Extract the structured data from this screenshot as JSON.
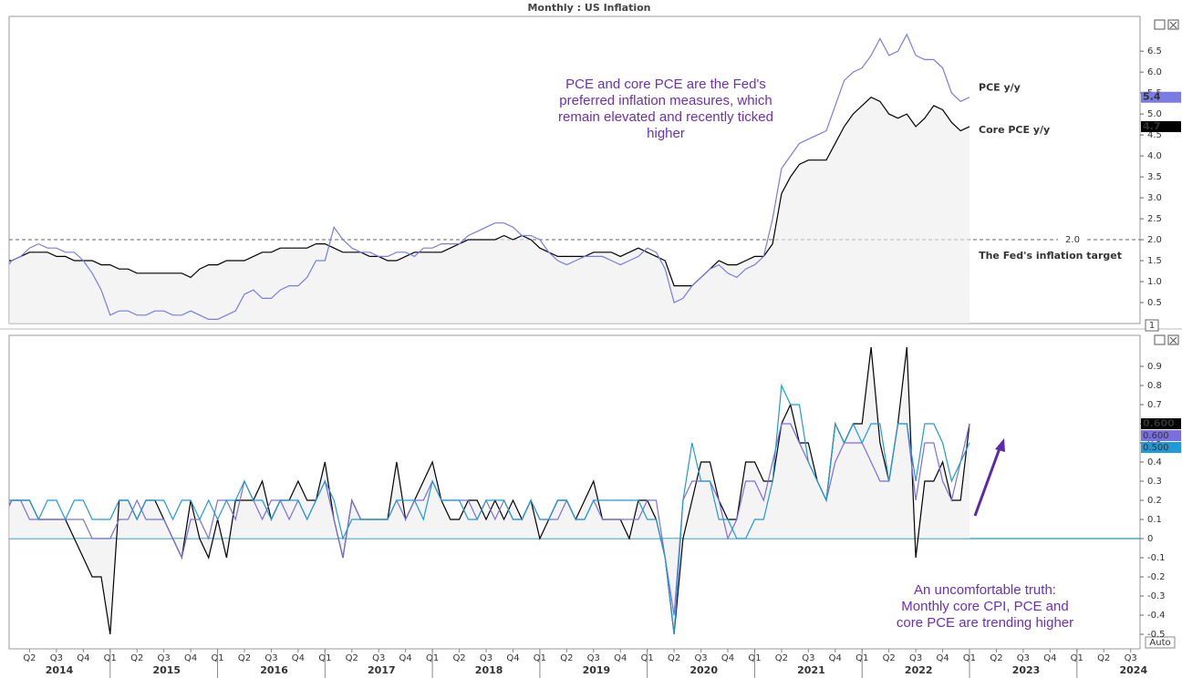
{
  "chart_data": [
    {
      "type": "line",
      "title": "Monthly : US Inflation",
      "ylim": [
        0,
        7.33
      ],
      "yticks": [
        0.5,
        {
          "value": 1,
          "label": "1.0"
        },
        1.5,
        {
          "value": 2,
          "label": "2.0"
        },
        2.5,
        {
          "value": 3,
          "label": "3.0"
        },
        3.5,
        {
          "value": 4,
          "label": "4.0"
        },
        4.5,
        {
          "value": 5,
          "label": "5.0"
        },
        5.5,
        {
          "value": 6,
          "label": "6.0"
        },
        6.5
      ],
      "target": {
        "value": 2,
        "label": "2.0",
        "text": "The Fed's inflation target"
      },
      "annotation": [
        "PCE and core PCE are the Fed's",
        "preferred inflation measures, which",
        "remain elevated and recently ticked",
        "higher"
      ],
      "panel_label": "1",
      "series": [
        {
          "name": "PCE y/y",
          "color": "#7b7be6",
          "values": [
            1.2,
            1.5,
            1.6,
            1.8,
            1.9,
            1.8,
            1.8,
            1.7,
            1.7,
            1.5,
            1.2,
            0.8,
            0.2,
            0.3,
            0.3,
            0.2,
            0.2,
            0.3,
            0.3,
            0.2,
            0.2,
            0.3,
            0.2,
            0.1,
            0.1,
            0.2,
            0.3,
            0.7,
            0.8,
            0.6,
            0.6,
            0.8,
            0.9,
            0.9,
            1.1,
            1.5,
            1.5,
            2.3,
            2.0,
            1.8,
            1.7,
            1.7,
            1.6,
            1.6,
            1.7,
            1.7,
            1.6,
            1.8,
            1.8,
            1.9,
            1.9,
            1.9,
            2.1,
            2.2,
            2.3,
            2.4,
            2.4,
            2.3,
            2.1,
            2.1,
            2.0,
            1.7,
            1.5,
            1.4,
            1.5,
            1.6,
            1.6,
            1.6,
            1.5,
            1.4,
            1.5,
            1.6,
            1.8,
            1.7,
            1.3,
            0.5,
            0.6,
            0.9,
            1.1,
            1.3,
            1.4,
            1.2,
            1.1,
            1.3,
            1.4,
            1.6,
            2.5,
            3.7,
            4.0,
            4.3,
            4.4,
            4.5,
            4.6,
            5.2,
            5.8,
            6.0,
            6.1,
            6.4,
            6.8,
            6.4,
            6.5,
            6.9,
            6.4,
            6.3,
            6.3,
            6.1,
            5.5,
            5.3,
            5.4
          ]
        },
        {
          "name": "Core PCE y/y",
          "color": "#000000",
          "values": [
            1.5,
            1.5,
            1.6,
            1.7,
            1.7,
            1.7,
            1.6,
            1.6,
            1.5,
            1.5,
            1.5,
            1.4,
            1.4,
            1.3,
            1.3,
            1.2,
            1.2,
            1.2,
            1.2,
            1.2,
            1.2,
            1.1,
            1.3,
            1.4,
            1.4,
            1.5,
            1.5,
            1.5,
            1.6,
            1.7,
            1.7,
            1.8,
            1.8,
            1.8,
            1.8,
            1.9,
            1.9,
            1.8,
            1.7,
            1.7,
            1.7,
            1.6,
            1.6,
            1.5,
            1.5,
            1.6,
            1.7,
            1.7,
            1.7,
            1.7,
            1.8,
            1.9,
            2.0,
            2.0,
            2.0,
            2.0,
            2.1,
            2.0,
            2.1,
            2.0,
            1.8,
            1.7,
            1.6,
            1.6,
            1.6,
            1.6,
            1.7,
            1.7,
            1.7,
            1.6,
            1.7,
            1.8,
            1.7,
            1.6,
            1.5,
            0.9,
            0.9,
            0.9,
            1.1,
            1.3,
            1.5,
            1.4,
            1.4,
            1.5,
            1.6,
            1.6,
            1.9,
            3.1,
            3.5,
            3.8,
            3.9,
            3.9,
            3.9,
            4.3,
            4.7,
            5.0,
            5.2,
            5.4,
            5.3,
            5.0,
            4.9,
            5.0,
            4.7,
            4.9,
            5.2,
            5.1,
            4.8,
            4.6,
            4.7
          ]
        }
      ]
    },
    {
      "type": "line",
      "ylim": [
        -0.576,
        1.062
      ],
      "yticks": [
        -0.5,
        -0.4,
        -0.3,
        -0.2,
        -0.1,
        0,
        0.1,
        0.2,
        0.3,
        0.4,
        0.5,
        0.6,
        0.7,
        0.8,
        0.9
      ],
      "zero_line": true,
      "annotation": [
        "An uncomfortable truth:",
        "Monthly core CPI, PCE and",
        "core PCE are trending higher"
      ],
      "auto_button": "Auto",
      "x_axis": {
        "quarters": [
          "Q2",
          "Q3",
          "Q4",
          "Q1",
          "Q2",
          "Q3",
          "Q4",
          "Q1",
          "Q2",
          "Q3",
          "Q4",
          "Q1",
          "Q2",
          "Q3",
          "Q4",
          "Q1",
          "Q2",
          "Q3",
          "Q4",
          "Q1",
          "Q2",
          "Q3",
          "Q4",
          "Q1",
          "Q2",
          "Q3",
          "Q4",
          "Q1",
          "Q2",
          "Q3",
          "Q4",
          "Q1",
          "Q2",
          "Q3",
          "Q4",
          "Q1",
          "Q2",
          "Q3",
          "Q4",
          "Q1",
          "Q2",
          "Q3"
        ],
        "years": [
          "2014",
          "2015",
          "2016",
          "2017",
          "2018",
          "2019",
          "2020",
          "2021",
          "2022",
          "2023",
          "2024"
        ]
      },
      "series": [
        {
          "color": "#000000",
          "end_label": "0.600",
          "values": [
            0.1,
            0.2,
            0.2,
            0.2,
            0.1,
            0.1,
            0.1,
            0.1,
            0.0,
            -0.1,
            -0.2,
            -0.2,
            -0.5,
            0.2,
            0.2,
            0.1,
            0.2,
            0.2,
            0.1,
            0.0,
            -0.1,
            0.2,
            0.0,
            -0.1,
            0.1,
            -0.1,
            0.2,
            0.2,
            0.2,
            0.3,
            0.1,
            0.2,
            0.2,
            0.3,
            0.2,
            0.2,
            0.4,
            0.1,
            -0.1,
            0.2,
            0.1,
            0.1,
            0.1,
            0.1,
            0.4,
            0.1,
            0.2,
            0.3,
            0.4,
            0.2,
            0.1,
            0.1,
            0.2,
            0.2,
            0.1,
            0.2,
            0.1,
            0.2,
            0.1,
            0.2,
            0.0,
            0.1,
            0.2,
            0.2,
            0.1,
            0.2,
            0.3,
            0.1,
            0.1,
            0.1,
            0.0,
            0.2,
            0.2,
            0.1,
            -0.1,
            -0.5,
            0.0,
            0.2,
            0.4,
            0.4,
            0.2,
            0.1,
            0.1,
            0.4,
            0.4,
            0.3,
            0.3,
            0.6,
            0.7,
            0.5,
            0.5,
            0.3,
            0.2,
            0.6,
            0.5,
            0.6,
            0.6,
            1.0,
            0.5,
            0.3,
            0.6,
            1.0,
            -0.1,
            0.3,
            0.3,
            0.4,
            0.2,
            0.2,
            0.6
          ]
        },
        {
          "color": "#7b6ee0",
          "end_label": "0.600",
          "values": [
            0.1,
            0.2,
            0.2,
            0.1,
            0.1,
            0.1,
            0.1,
            0.1,
            0.1,
            0.1,
            0.0,
            0.0,
            0.0,
            0.1,
            0.1,
            0.2,
            0.1,
            0.1,
            0.1,
            0.0,
            -0.1,
            0.1,
            0.1,
            0.0,
            0.2,
            0.2,
            0.1,
            0.3,
            0.2,
            0.1,
            0.2,
            0.2,
            0.1,
            0.2,
            0.1,
            0.2,
            0.3,
            0.1,
            -0.1,
            0.2,
            0.1,
            0.1,
            0.1,
            0.1,
            0.2,
            0.1,
            0.2,
            0.2,
            0.3,
            0.2,
            0.2,
            0.2,
            0.2,
            0.1,
            0.2,
            0.1,
            0.2,
            0.1,
            0.1,
            0.2,
            0.1,
            0.1,
            0.1,
            0.2,
            0.1,
            0.1,
            0.2,
            0.1,
            0.1,
            0.1,
            0.1,
            0.1,
            0.2,
            0.2,
            -0.1,
            -0.4,
            0.2,
            0.3,
            0.3,
            0.3,
            0.2,
            0.0,
            0.1,
            0.3,
            0.3,
            0.2,
            0.4,
            0.6,
            0.6,
            0.5,
            0.4,
            0.3,
            0.2,
            0.4,
            0.5,
            0.5,
            0.5,
            0.4,
            0.3,
            0.3,
            0.6,
            0.6,
            0.2,
            0.5,
            0.5,
            0.3,
            0.2,
            0.4,
            0.6
          ]
        },
        {
          "color": "#1f9ad6",
          "end_label": "0.500",
          "values": [
            0.2,
            0.2,
            0.2,
            0.2,
            0.1,
            0.2,
            0.2,
            0.1,
            0.2,
            0.2,
            0.1,
            0.1,
            0.1,
            0.2,
            0.2,
            0.1,
            0.2,
            0.2,
            0.2,
            0.1,
            0.2,
            0.2,
            0.1,
            0.2,
            0.1,
            0.2,
            0.2,
            0.3,
            0.2,
            0.2,
            0.1,
            0.2,
            0.2,
            0.2,
            0.1,
            0.2,
            0.3,
            0.2,
            0.0,
            0.1,
            0.1,
            0.1,
            0.1,
            0.1,
            0.2,
            0.2,
            0.2,
            0.1,
            0.3,
            0.2,
            0.2,
            0.2,
            0.1,
            0.1,
            0.2,
            0.2,
            0.2,
            0.1,
            0.1,
            0.2,
            0.1,
            0.1,
            0.2,
            0.2,
            0.1,
            0.1,
            0.2,
            0.2,
            0.2,
            0.2,
            0.2,
            0.2,
            0.1,
            0.1,
            -0.1,
            -0.5,
            0.2,
            0.5,
            0.3,
            0.3,
            0.1,
            0.1,
            0.0,
            0.0,
            0.1,
            0.1,
            0.3,
            0.8,
            0.7,
            0.7,
            0.4,
            0.3,
            0.2,
            0.6,
            0.5,
            0.6,
            0.5,
            0.6,
            0.6,
            0.3,
            0.6,
            0.6,
            0.3,
            0.6,
            0.6,
            0.5,
            0.3,
            0.4,
            0.5
          ]
        }
      ]
    }
  ]
}
